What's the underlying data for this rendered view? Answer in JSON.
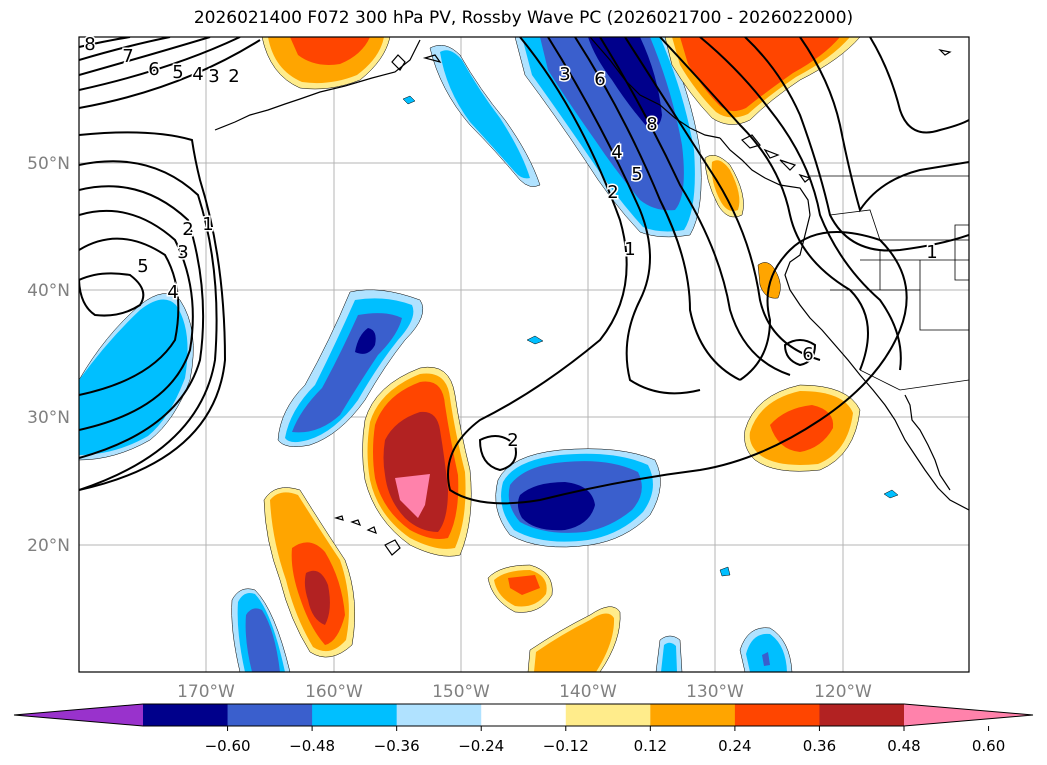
{
  "title": "2026021400 F072 300 hPa PV, Rossby Wave PC (2026021700 - 2026022000)",
  "lon_labels": [
    "170°W",
    "160°W",
    "150°W",
    "140°W",
    "130°W",
    "120°W"
  ],
  "lat_labels": [
    "50°N",
    "40°N",
    "30°N",
    "20°N"
  ],
  "colorbar": {
    "ticks": [
      "−0.60",
      "−0.48",
      "−0.36",
      "−0.24",
      "−0.12",
      "0.12",
      "0.24",
      "0.36",
      "0.48",
      "0.60"
    ],
    "colors": [
      "#9932cc",
      "#00008b",
      "#3a5fcd",
      "#00bfff",
      "#b0e2ff",
      "#ffffff",
      "#ffec8b",
      "#ffa500",
      "#ff4500",
      "#b22222",
      "#ff82ab"
    ]
  },
  "contour_labels": [
    "8",
    "7",
    "6",
    "5",
    "4",
    "3",
    "2",
    "1",
    "2",
    "3",
    "5",
    "4",
    "3",
    "4",
    "5",
    "8",
    "6",
    "2",
    "1",
    "2",
    "1",
    "6"
  ],
  "colors": {
    "deep_neg": "#00008b",
    "mid_neg": "#3a5fcd",
    "light_neg": "#00bfff",
    "pale_neg": "#b0e2ff",
    "pale_pos": "#ffec8b",
    "light_pos": "#ffa500",
    "mid_pos": "#ff4500",
    "deep_pos": "#b22222",
    "max_pos": "#ff82ab"
  }
}
